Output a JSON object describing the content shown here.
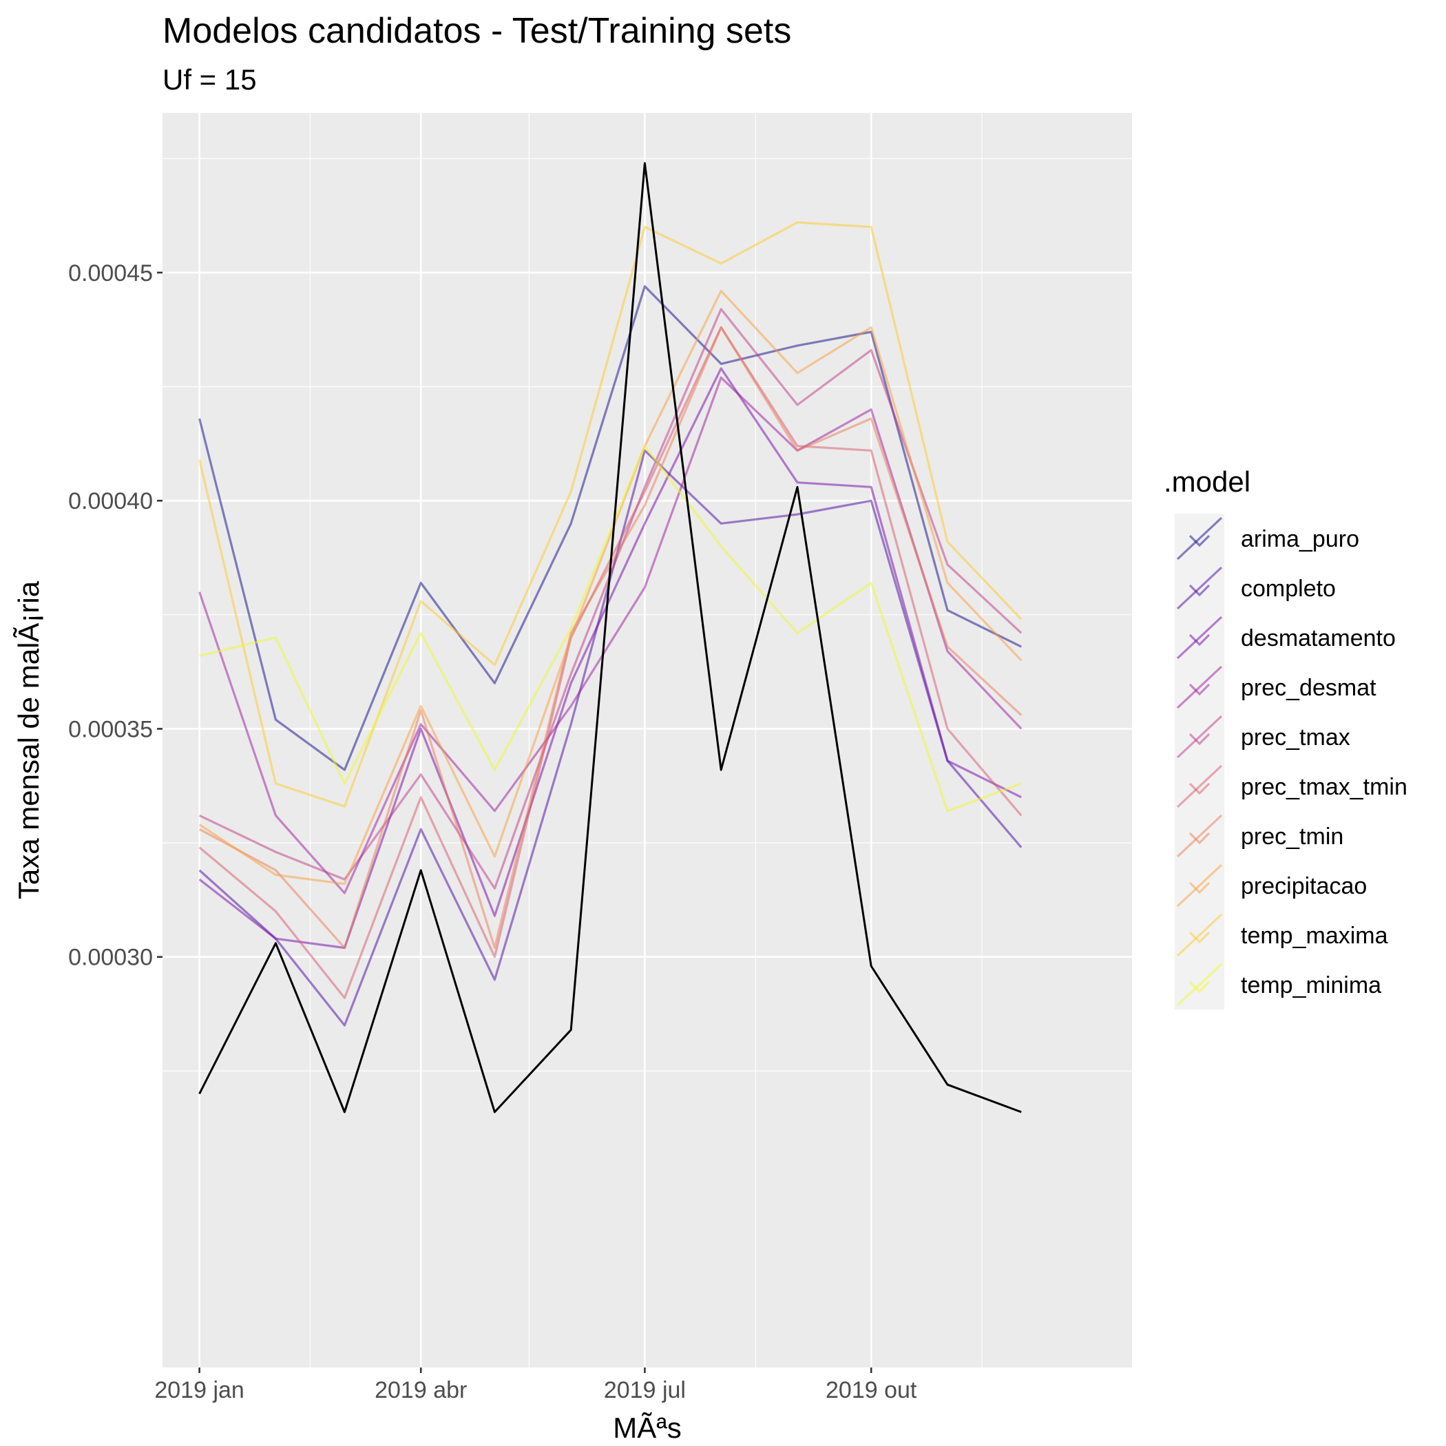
{
  "chart_data": {
    "type": "line",
    "title": "Modelos candidatos - Test/Training sets",
    "subtitle": "Uf = 15",
    "xlabel": "MÃªs",
    "ylabel": "Taxa mensal de malÃ¡ria",
    "x": [
      "2019-01",
      "2019-02",
      "2019-03",
      "2019-04",
      "2019-05",
      "2019-06",
      "2019-07",
      "2019-08",
      "2019-09",
      "2019-10",
      "2019-11",
      "2019-12"
    ],
    "x_ticks": [
      "2019 jan",
      "2019 abr",
      "2019 jul",
      "2019 out"
    ],
    "y_ticks": [
      "0.00030",
      "0.00035",
      "0.00040",
      "0.00045"
    ],
    "ylim": [
      0.00021,
      0.000485
    ],
    "grid": true,
    "legend_title": ".model",
    "legend_position": "right",
    "actual": {
      "color": "#000000",
      "values": [
        0.00027,
        0.000303,
        0.000266,
        0.000319,
        0.000266,
        0.000284,
        0.000474,
        0.000341,
        0.000403,
        0.000298,
        0.000272,
        0.000266
      ]
    },
    "series": [
      {
        "name": "arima_puro",
        "color": "#0D0887",
        "values": [
          0.000418,
          0.000352,
          0.000341,
          0.000382,
          0.00036,
          0.000395,
          0.000447,
          0.00043,
          0.000434,
          0.000437,
          0.000376,
          0.000368
        ]
      },
      {
        "name": "completo",
        "color": "#47039F",
        "values": [
          0.000319,
          0.000304,
          0.000285,
          0.000328,
          0.000295,
          0.000351,
          0.000411,
          0.000395,
          0.000397,
          0.0004,
          0.000343,
          0.000324
        ]
      },
      {
        "name": "desmatamento",
        "color": "#7301A8",
        "values": [
          0.000317,
          0.000304,
          0.000302,
          0.00035,
          0.000309,
          0.00036,
          0.000395,
          0.000429,
          0.000404,
          0.000403,
          0.000343,
          0.000335
        ]
      },
      {
        "name": "prec_desmat",
        "color": "#9C179E",
        "values": [
          0.00038,
          0.000331,
          0.000314,
          0.000351,
          0.000332,
          0.000355,
          0.000381,
          0.000427,
          0.000411,
          0.00042,
          0.000367,
          0.00035
        ]
      },
      {
        "name": "prec_tmax",
        "color": "#BD3786",
        "values": [
          0.000331,
          0.000323,
          0.000317,
          0.00034,
          0.000315,
          0.000362,
          0.000403,
          0.000442,
          0.000421,
          0.000433,
          0.000386,
          0.000371
        ]
      },
      {
        "name": "prec_tmax_tmin",
        "color": "#D8576B",
        "values": [
          0.000324,
          0.00031,
          0.000291,
          0.000335,
          0.0003,
          0.00037,
          0.000402,
          0.000438,
          0.000412,
          0.000411,
          0.00035,
          0.000331
        ]
      },
      {
        "name": "prec_tmin",
        "color": "#ED7953",
        "values": [
          0.000328,
          0.000319,
          0.000302,
          0.000354,
          0.000302,
          0.000371,
          0.000399,
          0.000438,
          0.000411,
          0.000418,
          0.000368,
          0.000353
        ]
      },
      {
        "name": "precipitacao",
        "color": "#FA9E3B",
        "values": [
          0.000329,
          0.000318,
          0.000316,
          0.000355,
          0.000322,
          0.00037,
          0.000412,
          0.000446,
          0.000428,
          0.000438,
          0.000382,
          0.000365
        ]
      },
      {
        "name": "temp_maxima",
        "color": "#FDC926",
        "values": [
          0.000409,
          0.000338,
          0.000333,
          0.000378,
          0.000364,
          0.000402,
          0.00046,
          0.000452,
          0.000461,
          0.00046,
          0.000391,
          0.000374
        ]
      },
      {
        "name": "temp_minima",
        "color": "#F0F921",
        "values": [
          0.000366,
          0.00037,
          0.000338,
          0.000371,
          0.000341,
          0.000372,
          0.000412,
          0.00039,
          0.000371,
          0.000382,
          0.000332,
          0.000338
        ]
      }
    ]
  }
}
